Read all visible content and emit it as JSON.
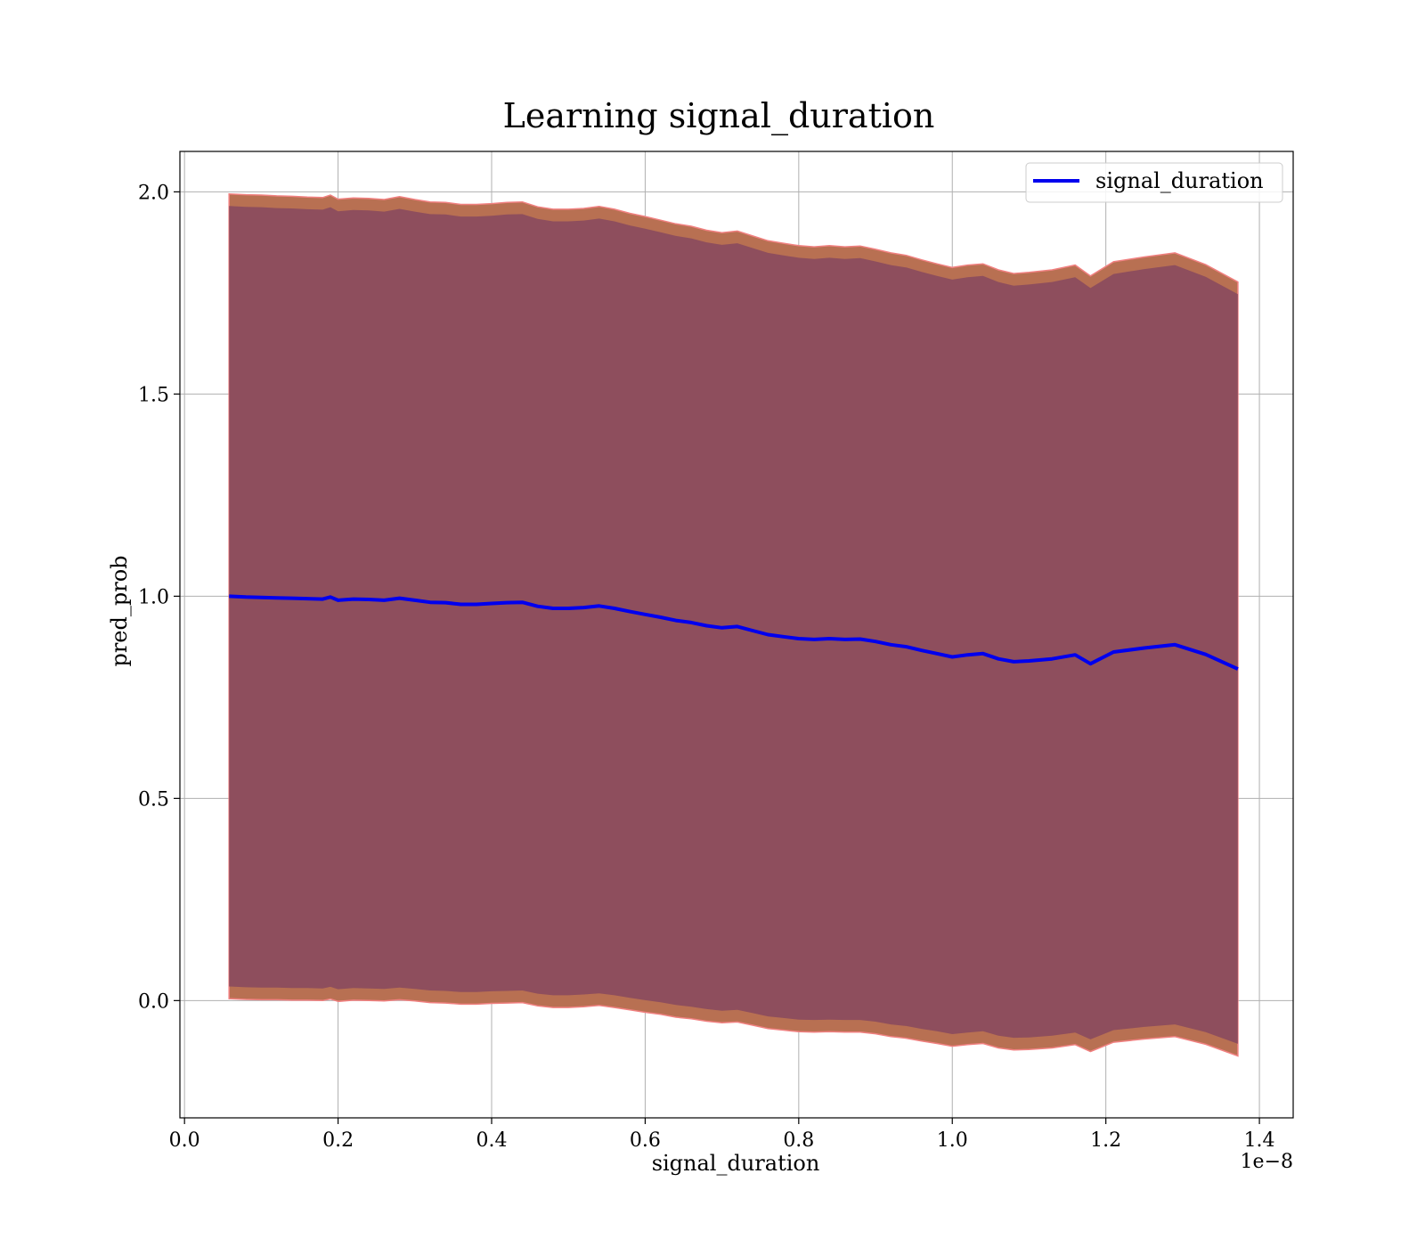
{
  "chart_data": {
    "type": "line",
    "title": "Learning signal_duration",
    "xlabel": "signal_duration",
    "ylabel": "pred_prob",
    "x_offset_label": "1e−8",
    "xlim": [
      -0.006,
      1.444
    ],
    "ylim": [
      -0.29,
      2.1
    ],
    "x_ticks": [
      0.0,
      0.2,
      0.4,
      0.6,
      0.8,
      1.0,
      1.2,
      1.4
    ],
    "x_tick_labels": [
      "0.0",
      "0.2",
      "0.4",
      "0.6",
      "0.8",
      "1.0",
      "1.2",
      "1.4"
    ],
    "y_ticks": [
      0.0,
      0.5,
      1.0,
      1.5,
      2.0
    ],
    "y_tick_labels": [
      "0.0",
      "0.5",
      "1.0",
      "1.5",
      "2.0"
    ],
    "grid": true,
    "legend_position": "top-right",
    "colors": {
      "line": "#0000ee",
      "inner_band": "#8a4a5e",
      "outer_band": "#b87052",
      "band_edge": "#f08080",
      "grid": "#b0b0b0"
    },
    "series": [
      {
        "name": "signal_duration",
        "x": [
          0.058,
          0.08,
          0.1,
          0.12,
          0.14,
          0.16,
          0.18,
          0.19,
          0.2,
          0.22,
          0.24,
          0.26,
          0.28,
          0.3,
          0.32,
          0.34,
          0.36,
          0.38,
          0.4,
          0.42,
          0.44,
          0.46,
          0.48,
          0.5,
          0.52,
          0.54,
          0.56,
          0.58,
          0.6,
          0.62,
          0.64,
          0.66,
          0.68,
          0.7,
          0.72,
          0.74,
          0.76,
          0.78,
          0.8,
          0.82,
          0.84,
          0.86,
          0.88,
          0.9,
          0.92,
          0.94,
          0.96,
          0.98,
          1.0,
          1.02,
          1.04,
          1.06,
          1.08,
          1.1,
          1.13,
          1.16,
          1.18,
          1.21,
          1.25,
          1.29,
          1.33,
          1.372
        ],
        "values": [
          1.0,
          0.998,
          0.997,
          0.996,
          0.995,
          0.994,
          0.993,
          0.998,
          0.99,
          0.993,
          0.992,
          0.99,
          0.995,
          0.99,
          0.985,
          0.984,
          0.98,
          0.98,
          0.982,
          0.984,
          0.985,
          0.975,
          0.97,
          0.97,
          0.972,
          0.976,
          0.97,
          0.962,
          0.955,
          0.948,
          0.94,
          0.935,
          0.927,
          0.922,
          0.925,
          0.915,
          0.905,
          0.9,
          0.895,
          0.893,
          0.895,
          0.893,
          0.894,
          0.888,
          0.88,
          0.875,
          0.866,
          0.858,
          0.85,
          0.855,
          0.858,
          0.845,
          0.838,
          0.84,
          0.845,
          0.855,
          0.833,
          0.862,
          0.872,
          0.88,
          0.856,
          0.82
        ],
        "band_inner_upper": [
          1.965,
          1.963,
          1.962,
          1.96,
          1.959,
          1.957,
          1.956,
          1.962,
          1.952,
          1.955,
          1.954,
          1.951,
          1.958,
          1.951,
          1.945,
          1.944,
          1.939,
          1.939,
          1.941,
          1.944,
          1.945,
          1.933,
          1.927,
          1.927,
          1.929,
          1.934,
          1.927,
          1.917,
          1.909,
          1.9,
          1.891,
          1.885,
          1.875,
          1.869,
          1.873,
          1.861,
          1.849,
          1.843,
          1.837,
          1.834,
          1.837,
          1.834,
          1.836,
          1.828,
          1.819,
          1.813,
          1.802,
          1.792,
          1.783,
          1.789,
          1.792,
          1.777,
          1.768,
          1.771,
          1.777,
          1.789,
          1.762,
          1.797,
          1.809,
          1.819,
          1.79,
          1.747
        ],
        "band_inner_lower": [
          0.035,
          0.033,
          0.032,
          0.032,
          0.031,
          0.031,
          0.03,
          0.034,
          0.028,
          0.031,
          0.03,
          0.029,
          0.032,
          0.029,
          0.025,
          0.024,
          0.021,
          0.021,
          0.023,
          0.024,
          0.025,
          0.017,
          0.013,
          0.013,
          0.015,
          0.018,
          0.013,
          0.007,
          0.001,
          -0.004,
          -0.011,
          -0.015,
          -0.021,
          -0.025,
          -0.023,
          -0.031,
          -0.039,
          -0.043,
          -0.047,
          -0.048,
          -0.047,
          -0.048,
          -0.048,
          -0.052,
          -0.059,
          -0.063,
          -0.07,
          -0.076,
          -0.083,
          -0.079,
          -0.076,
          -0.087,
          -0.092,
          -0.091,
          -0.087,
          -0.079,
          -0.096,
          -0.073,
          -0.065,
          -0.059,
          -0.078,
          -0.107
        ],
        "band_outer_upper": [
          1.995,
          1.993,
          1.992,
          1.99,
          1.989,
          1.987,
          1.986,
          1.992,
          1.982,
          1.985,
          1.984,
          1.981,
          1.988,
          1.981,
          1.975,
          1.974,
          1.969,
          1.969,
          1.971,
          1.974,
          1.975,
          1.963,
          1.957,
          1.957,
          1.959,
          1.964,
          1.957,
          1.947,
          1.939,
          1.93,
          1.921,
          1.915,
          1.905,
          1.899,
          1.903,
          1.891,
          1.879,
          1.873,
          1.867,
          1.864,
          1.867,
          1.864,
          1.866,
          1.858,
          1.849,
          1.843,
          1.832,
          1.822,
          1.813,
          1.819,
          1.822,
          1.807,
          1.798,
          1.801,
          1.807,
          1.819,
          1.792,
          1.827,
          1.839,
          1.849,
          1.82,
          1.777
        ],
        "band_outer_lower": [
          0.005,
          0.003,
          0.002,
          0.002,
          0.001,
          0.001,
          0.0,
          0.004,
          -0.002,
          0.001,
          0.0,
          -0.001,
          0.002,
          -0.001,
          -0.005,
          -0.006,
          -0.009,
          -0.009,
          -0.007,
          -0.006,
          -0.005,
          -0.013,
          -0.017,
          -0.017,
          -0.015,
          -0.012,
          -0.017,
          -0.023,
          -0.029,
          -0.034,
          -0.041,
          -0.045,
          -0.051,
          -0.055,
          -0.053,
          -0.061,
          -0.069,
          -0.073,
          -0.077,
          -0.078,
          -0.077,
          -0.078,
          -0.078,
          -0.082,
          -0.089,
          -0.093,
          -0.1,
          -0.106,
          -0.113,
          -0.109,
          -0.106,
          -0.117,
          -0.122,
          -0.121,
          -0.117,
          -0.109,
          -0.126,
          -0.103,
          -0.095,
          -0.089,
          -0.108,
          -0.137
        ]
      }
    ]
  }
}
